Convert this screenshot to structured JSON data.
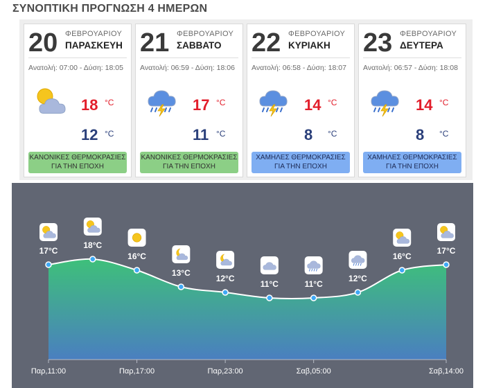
{
  "section_title": "ΣΥΝΟΠΤΙΚΗ ΠΡΟΓΝΩΣΗ 4 ΗΜΕΡΩΝ",
  "days": [
    {
      "day": "20",
      "month": "ΦΕΒΡΟΥΑΡΙΟΥ",
      "weekday": "ΠΑΡΑΣΚΕΥΗ",
      "sun": "Ανατολή: 07:00 - Δύση: 18:05",
      "icon": "partly-cloudy-icon",
      "tmax": "18",
      "tmin": "12",
      "unit": "°C",
      "badge_line1": "ΚΑΝΟΝΙΚΕΣ ΘΕΡΜΟΚΡΑΣΙΕΣ",
      "badge_line2": "ΓΙΑ ΤΗΝ ΕΠΟΧΗ",
      "badge_color": "#8ccf86"
    },
    {
      "day": "21",
      "month": "ΦΕΒΡΟΥΑΡΙΟΥ",
      "weekday": "ΣΑΒΒΑΤΟ",
      "sun": "Ανατολή: 06:59 - Δύση: 18:06",
      "icon": "thunderstorm-icon",
      "tmax": "17",
      "tmin": "11",
      "unit": "°C",
      "badge_line1": "ΚΑΝΟΝΙΚΕΣ ΘΕΡΜΟΚΡΑΣΙΕΣ",
      "badge_line2": "ΓΙΑ ΤΗΝ ΕΠΟΧΗ",
      "badge_color": "#8ccf86"
    },
    {
      "day": "22",
      "month": "ΦΕΒΡΟΥΑΡΙΟΥ",
      "weekday": "ΚΥΡΙΑΚΗ",
      "sun": "Ανατολή: 06:58 - Δύση: 18:07",
      "icon": "thunderstorm-icon",
      "tmax": "14",
      "tmin": "8",
      "unit": "°C",
      "badge_line1": "ΧΑΜΗΛΕΣ ΘΕΡΜΟΚΡΑΣΙΕΣ",
      "badge_line2": "ΓΙΑ ΤΗΝ ΕΠΟΧΗ",
      "badge_color": "#7faef2"
    },
    {
      "day": "23",
      "month": "ΦΕΒΡΟΥΑΡΙΟΥ",
      "weekday": "ΔΕΥΤΕΡΑ",
      "sun": "Ανατολή: 06:57 - Δύση: 18:08",
      "icon": "thunderstorm-icon",
      "tmax": "14",
      "tmin": "8",
      "unit": "°C",
      "badge_line1": "ΧΑΜΗΛΕΣ ΘΕΡΜΟΚΡΑΣΙΕΣ",
      "badge_line2": "ΓΙΑ ΤΗΝ ΕΠΟΧΗ",
      "badge_color": "#7faef2"
    }
  ],
  "chart_data": {
    "type": "area",
    "points": [
      {
        "temp": 17,
        "label": "17°C",
        "icon": "partly-cloudy-icon"
      },
      {
        "temp": 18,
        "label": "18°C",
        "icon": "partly-cloudy-icon"
      },
      {
        "temp": 16,
        "label": "16°C",
        "icon": "sun-icon"
      },
      {
        "temp": 13,
        "label": "13°C",
        "icon": "moon-cloud-icon"
      },
      {
        "temp": 12,
        "label": "12°C",
        "icon": "moon-cloud-icon"
      },
      {
        "temp": 11,
        "label": "11°C",
        "icon": "cloud-icon"
      },
      {
        "temp": 11,
        "label": "11°C",
        "icon": "rain-cloud-icon"
      },
      {
        "temp": 12,
        "label": "12°C",
        "icon": "rain-cloud-icon"
      },
      {
        "temp": 16,
        "label": "16°C",
        "icon": "partly-cloudy-icon"
      },
      {
        "temp": 17,
        "label": "17°C",
        "icon": "partly-cloudy-icon"
      }
    ],
    "x_tick_labels": [
      "Παρ,11:00",
      "Παρ,17:00",
      "Παρ,23:00",
      "Σαβ,05:00",
      "Σαβ,14:00"
    ],
    "x_tick_point_index": [
      0,
      2,
      4,
      6,
      9
    ],
    "ylim": [
      0,
      19
    ],
    "colors": {
      "fill_top": "#3ec07a",
      "fill_bottom": "#4a7fc0",
      "line": "#ffffff",
      "background": "#616673"
    }
  }
}
